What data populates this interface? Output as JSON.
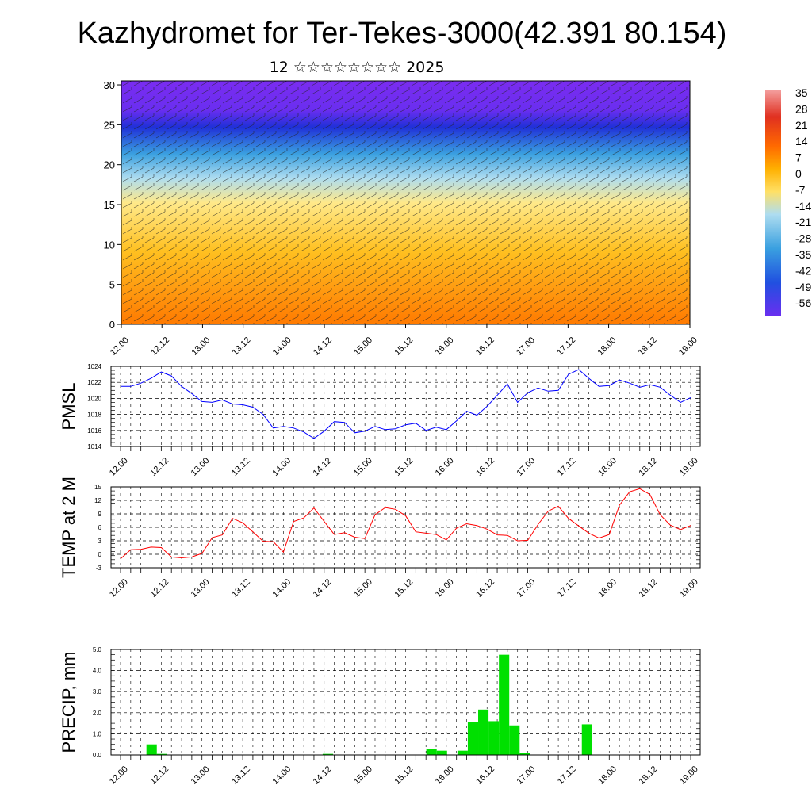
{
  "title": "Kazhydromet for Ter-Tekes-3000(42.391 80.154)",
  "subtitle": "12 ☆☆☆☆☆☆☆☆ 2025",
  "time_ticks": [
    "12.00",
    "12.12",
    "13.00",
    "13.12",
    "14.00",
    "14.12",
    "15.00",
    "15.12",
    "16.00",
    "16.12",
    "17.00",
    "17.12",
    "18.00",
    "18.12",
    "19.00"
  ],
  "colorbar": {
    "labels": [
      "35",
      "28",
      "21",
      "14",
      "7",
      "0",
      "-7",
      "-14",
      "-21",
      "-28",
      "-35",
      "-42",
      "-49",
      "-56"
    ],
    "colors": [
      "#f4a0a0",
      "#e03020",
      "#ff6a00",
      "#ffb000",
      "#ffe066",
      "#aeddf0",
      "#3aa0e0",
      "#2050e0",
      "#6a2ef0"
    ]
  },
  "chart_data": [
    {
      "type": "heatmap",
      "title": "",
      "xlabel": "",
      "ylabel": "",
      "x_ticks": [
        "12.00",
        "12.12",
        "13.00",
        "13.12",
        "14.00",
        "14.12",
        "15.00",
        "15.12",
        "16.00",
        "16.12",
        "17.00",
        "17.12",
        "18.00",
        "18.12",
        "19.00"
      ],
      "y_ticks": [
        0,
        5,
        10,
        15,
        20,
        25,
        30
      ],
      "ylim": [
        0,
        30.5
      ],
      "note_levels": [
        30,
        25,
        20,
        15,
        10,
        5,
        0
      ]
    },
    {
      "type": "line",
      "ylabel": "PMSL",
      "color": "#0000ff",
      "ylim": [
        1014,
        1024
      ],
      "y_ticks": [
        1014,
        1016,
        1018,
        1020,
        1022,
        1024
      ],
      "x_ticks": [
        "12.00",
        "12.12",
        "13.00",
        "13.12",
        "14.00",
        "14.12",
        "15.00",
        "15.12",
        "16.00",
        "16.12",
        "17.00",
        "17.12",
        "18.00",
        "18.12",
        "19.00"
      ],
      "grid": true,
      "values": [
        1021.5,
        1021.5,
        1021.9,
        1022.5,
        1023.3,
        1022.8,
        1021.5,
        1020.6,
        1019.6,
        1019.5,
        1019.8,
        1019.3,
        1019.2,
        1018.9,
        1018.0,
        1016.3,
        1016.5,
        1016.3,
        1015.8,
        1015.0,
        1015.9,
        1017.1,
        1017.0,
        1015.7,
        1015.9,
        1016.5,
        1016.1,
        1016.2,
        1016.7,
        1016.9,
        1016.0,
        1016.4,
        1016.1,
        1017.2,
        1018.4,
        1017.9,
        1019.0,
        1020.4,
        1021.8,
        1019.5,
        1020.7,
        1021.3,
        1020.9,
        1021.0,
        1023.0,
        1023.6,
        1022.5,
        1021.5,
        1021.6,
        1022.3,
        1021.9,
        1021.4,
        1021.7,
        1021.4,
        1020.4,
        1019.5,
        1020.1
      ]
    },
    {
      "type": "line",
      "ylabel": "TEMP at 2 M",
      "color": "#ff0000",
      "ylim": [
        -3,
        15
      ],
      "y_ticks": [
        -3,
        0,
        3,
        6,
        9,
        12,
        15
      ],
      "x_ticks": [
        "12.00",
        "12.12",
        "13.00",
        "13.12",
        "14.00",
        "14.12",
        "15.00",
        "15.12",
        "16.00",
        "16.12",
        "17.00",
        "17.12",
        "18.00",
        "18.12",
        "19.00"
      ],
      "grid": true,
      "values": [
        -1.0,
        1.0,
        1.1,
        1.6,
        1.5,
        -0.6,
        -0.8,
        -0.6,
        0.2,
        3.7,
        4.3,
        8.0,
        7.0,
        5.0,
        2.9,
        2.8,
        0.5,
        7.3,
        8.1,
        10.3,
        7.3,
        4.4,
        4.8,
        3.8,
        3.5,
        8.8,
        10.4,
        10.0,
        8.6,
        5.0,
        4.7,
        4.4,
        3.2,
        5.8,
        6.8,
        6.4,
        5.6,
        4.3,
        4.2,
        3.0,
        3.1,
        6.6,
        9.6,
        10.7,
        8.0,
        6.3,
        4.7,
        3.6,
        4.4,
        10.9,
        13.9,
        14.6,
        13.3,
        8.8,
        6.5,
        5.5,
        6.4
      ]
    },
    {
      "type": "bar",
      "ylabel": "PRECIP, mm",
      "color": "#00e000",
      "ylim": [
        0,
        5
      ],
      "y_ticks": [
        "0.0",
        "1.0",
        "2.0",
        "3.0",
        "4.0",
        "5.0"
      ],
      "x_ticks": [
        "12.00",
        "12.12",
        "13.00",
        "13.12",
        "14.00",
        "14.12",
        "15.00",
        "15.12",
        "16.00",
        "16.12",
        "17.00",
        "17.12",
        "18.00",
        "18.12",
        "19.00"
      ],
      "grid": true,
      "values": [
        0,
        0,
        0,
        0.5,
        0.05,
        0,
        0,
        0,
        0,
        0,
        0,
        0,
        0,
        0,
        0,
        0,
        0,
        0,
        0,
        0,
        0.05,
        0,
        0,
        0,
        0,
        0,
        0,
        0,
        0,
        0,
        0.3,
        0.2,
        0,
        0.2,
        1.55,
        2.15,
        1.6,
        4.75,
        1.4,
        0.1,
        0,
        0,
        0,
        0,
        0,
        1.45,
        0,
        0,
        0,
        0,
        0,
        0,
        0,
        0,
        0,
        0
      ]
    }
  ]
}
